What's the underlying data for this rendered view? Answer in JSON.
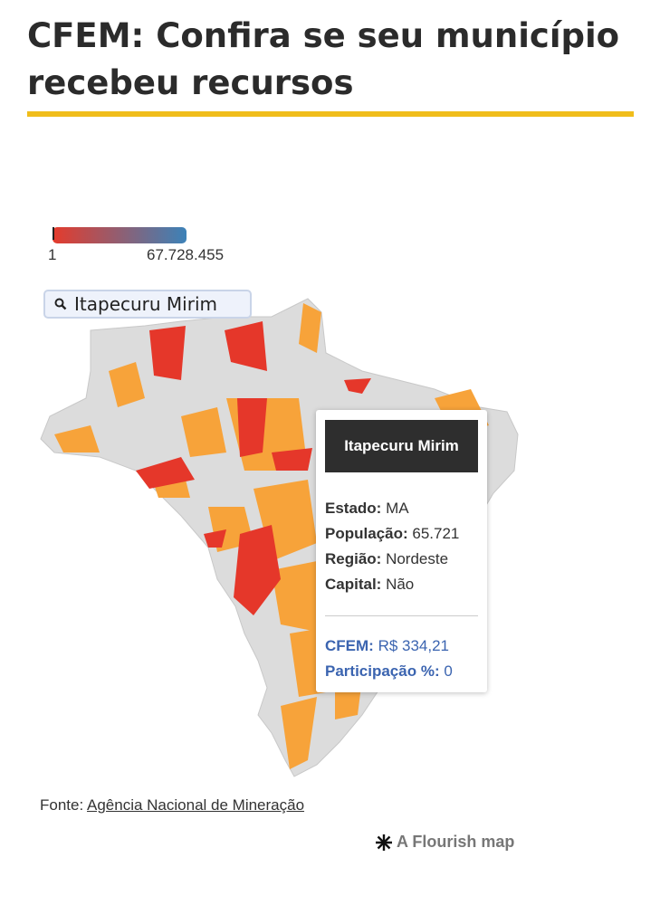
{
  "title": "CFEM: Confira se seu município recebeu recursos",
  "legend": {
    "min": "1",
    "max": "67.728.455",
    "color_min": "#e53b2c",
    "color_max": "#3c82b8"
  },
  "search": {
    "value": "Itapecuru Mirim"
  },
  "tooltip": {
    "name": "Itapecuru Mirim",
    "estado_label": "Estado:",
    "estado": "MA",
    "populacao_label": "População:",
    "populacao": "65.721",
    "regiao_label": "Região:",
    "regiao": "Nordeste",
    "capital_label": "Capital:",
    "capital": "Não",
    "cfem_label": "CFEM:",
    "cfem": "R$ 334,21",
    "participacao_label": "Participação %:",
    "participacao": "0"
  },
  "source": {
    "label": "Fonte:",
    "link": "Agência Nacional de Mineração"
  },
  "credit": "A Flourish map"
}
